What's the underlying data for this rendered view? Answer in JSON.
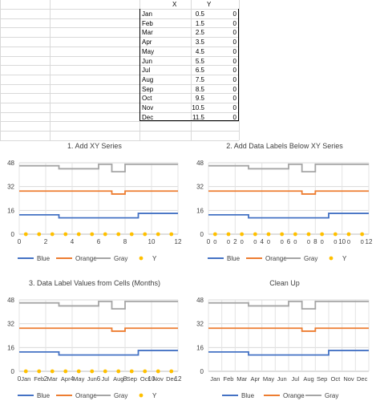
{
  "sheet": {
    "col_headers": [
      "X",
      "Y"
    ],
    "rows": [
      {
        "label": "Jan",
        "x": "0.5",
        "y": "0"
      },
      {
        "label": "Feb",
        "x": "1.5",
        "y": "0"
      },
      {
        "label": "Mar",
        "x": "2.5",
        "y": "0"
      },
      {
        "label": "Apr",
        "x": "3.5",
        "y": "0"
      },
      {
        "label": "May",
        "x": "4.5",
        "y": "0"
      },
      {
        "label": "Jun",
        "x": "5.5",
        "y": "0"
      },
      {
        "label": "Jul",
        "x": "6.5",
        "y": "0"
      },
      {
        "label": "Aug",
        "x": "7.5",
        "y": "0"
      },
      {
        "label": "Sep",
        "x": "8.5",
        "y": "0"
      },
      {
        "label": "Oct",
        "x": "9.5",
        "y": "0"
      },
      {
        "label": "Nov",
        "x": "10.5",
        "y": "0"
      },
      {
        "label": "Dec",
        "x": "11.5",
        "y": "0"
      }
    ]
  },
  "colors": {
    "blue": "#4472c4",
    "orange": "#ed7d31",
    "gray": "#a5a5a5",
    "y": "#ffc000"
  },
  "chart_data": [
    {
      "type": "line",
      "title": "1. Add XY Series",
      "x_axis": "numeric",
      "x_ticks": [
        "0",
        "2",
        "4",
        "6",
        "8",
        "10",
        "12"
      ],
      "y_ticks": [
        "0",
        "16",
        "32",
        "48"
      ],
      "ylim": [
        0,
        48
      ],
      "xlim": [
        0,
        12
      ],
      "point_labels": [],
      "series": [
        {
          "name": "Blue",
          "values": [
            13,
            13,
            13,
            11,
            11,
            11,
            11,
            11,
            11,
            14,
            14,
            14
          ]
        },
        {
          "name": "Orange",
          "values": [
            29,
            29,
            29,
            29,
            29,
            29,
            29,
            27,
            29,
            29,
            29,
            29
          ]
        },
        {
          "name": "Gray",
          "values": [
            46,
            46,
            46,
            44,
            44,
            44,
            47,
            42,
            47,
            47,
            47,
            47
          ]
        },
        {
          "name": "Y",
          "x": [
            0.5,
            1.5,
            2.5,
            3.5,
            4.5,
            5.5,
            6.5,
            7.5,
            8.5,
            9.5,
            10.5,
            11.5
          ],
          "values": [
            0,
            0,
            0,
            0,
            0,
            0,
            0,
            0,
            0,
            0,
            0,
            0
          ]
        }
      ],
      "legend": [
        "Blue",
        "Orange",
        "Gray",
        "Y"
      ]
    },
    {
      "type": "line",
      "title": "2. Add Data Labels Below XY Series",
      "x_axis": "numeric",
      "x_ticks": [
        "0",
        "2",
        "4",
        "6",
        "8",
        "10",
        "12"
      ],
      "y_ticks": [
        "0",
        "16",
        "32",
        "48"
      ],
      "ylim": [
        0,
        48
      ],
      "xlim": [
        0,
        12
      ],
      "point_labels": [
        "0",
        "0",
        "0",
        "0",
        "0",
        "0",
        "0",
        "0",
        "0",
        "0",
        "0",
        "0"
      ],
      "series": [
        {
          "name": "Blue",
          "values": [
            13,
            13,
            13,
            11,
            11,
            11,
            11,
            11,
            11,
            14,
            14,
            14
          ]
        },
        {
          "name": "Orange",
          "values": [
            29,
            29,
            29,
            29,
            29,
            29,
            29,
            27,
            29,
            29,
            29,
            29
          ]
        },
        {
          "name": "Gray",
          "values": [
            46,
            46,
            46,
            44,
            44,
            44,
            47,
            42,
            47,
            47,
            47,
            47
          ]
        },
        {
          "name": "Y",
          "x": [
            0.5,
            1.5,
            2.5,
            3.5,
            4.5,
            5.5,
            6.5,
            7.5,
            8.5,
            9.5,
            10.5,
            11.5
          ],
          "values": [
            0,
            0,
            0,
            0,
            0,
            0,
            0,
            0,
            0,
            0,
            0,
            0
          ]
        }
      ],
      "legend": [
        "Blue",
        "Orange",
        "Gray",
        "Y"
      ]
    },
    {
      "type": "line",
      "title": "3. Data Label Values from Cells (Months)",
      "x_axis": "numeric",
      "x_ticks": [
        "0",
        "2",
        "4",
        "6",
        "8",
        "10",
        "12"
      ],
      "y_ticks": [
        "0",
        "16",
        "32",
        "48"
      ],
      "ylim": [
        0,
        48
      ],
      "xlim": [
        0,
        12
      ],
      "point_labels": [
        "Jan",
        "Feb",
        "Mar",
        "Apr",
        "May",
        "Jun",
        "Jul",
        "Aug",
        "Sep",
        "Oct",
        "Nov",
        "Dec"
      ],
      "series": [
        {
          "name": "Blue",
          "values": [
            13,
            13,
            13,
            11,
            11,
            11,
            11,
            11,
            11,
            14,
            14,
            14
          ]
        },
        {
          "name": "Orange",
          "values": [
            29,
            29,
            29,
            29,
            29,
            29,
            29,
            27,
            29,
            29,
            29,
            29
          ]
        },
        {
          "name": "Gray",
          "values": [
            46,
            46,
            46,
            44,
            44,
            44,
            47,
            42,
            47,
            47,
            47,
            47
          ]
        },
        {
          "name": "Y",
          "x": [
            0.5,
            1.5,
            2.5,
            3.5,
            4.5,
            5.5,
            6.5,
            7.5,
            8.5,
            9.5,
            10.5,
            11.5
          ],
          "values": [
            0,
            0,
            0,
            0,
            0,
            0,
            0,
            0,
            0,
            0,
            0,
            0
          ]
        }
      ],
      "legend": [
        "Blue",
        "Orange",
        "Gray",
        "Y"
      ]
    },
    {
      "type": "line",
      "title": "Clean Up",
      "x_axis": "category",
      "x_ticks": [
        "Jan",
        "Feb",
        "Mar",
        "Apr",
        "May",
        "Jun",
        "Jul",
        "Aug",
        "Sep",
        "Oct",
        "Nov",
        "Dec"
      ],
      "y_ticks": [
        "0",
        "16",
        "32",
        "48"
      ],
      "ylim": [
        0,
        48
      ],
      "xlim": [
        0,
        12
      ],
      "point_labels": [],
      "series": [
        {
          "name": "Blue",
          "values": [
            13,
            13,
            13,
            11,
            11,
            11,
            11,
            11,
            11,
            14,
            14,
            14
          ]
        },
        {
          "name": "Orange",
          "values": [
            29,
            29,
            29,
            29,
            29,
            29,
            29,
            27,
            29,
            29,
            29,
            29
          ]
        },
        {
          "name": "Gray",
          "values": [
            46,
            46,
            46,
            44,
            44,
            44,
            47,
            42,
            47,
            47,
            47,
            47
          ]
        }
      ],
      "legend": [
        "Blue",
        "Orange",
        "Gray"
      ]
    }
  ]
}
